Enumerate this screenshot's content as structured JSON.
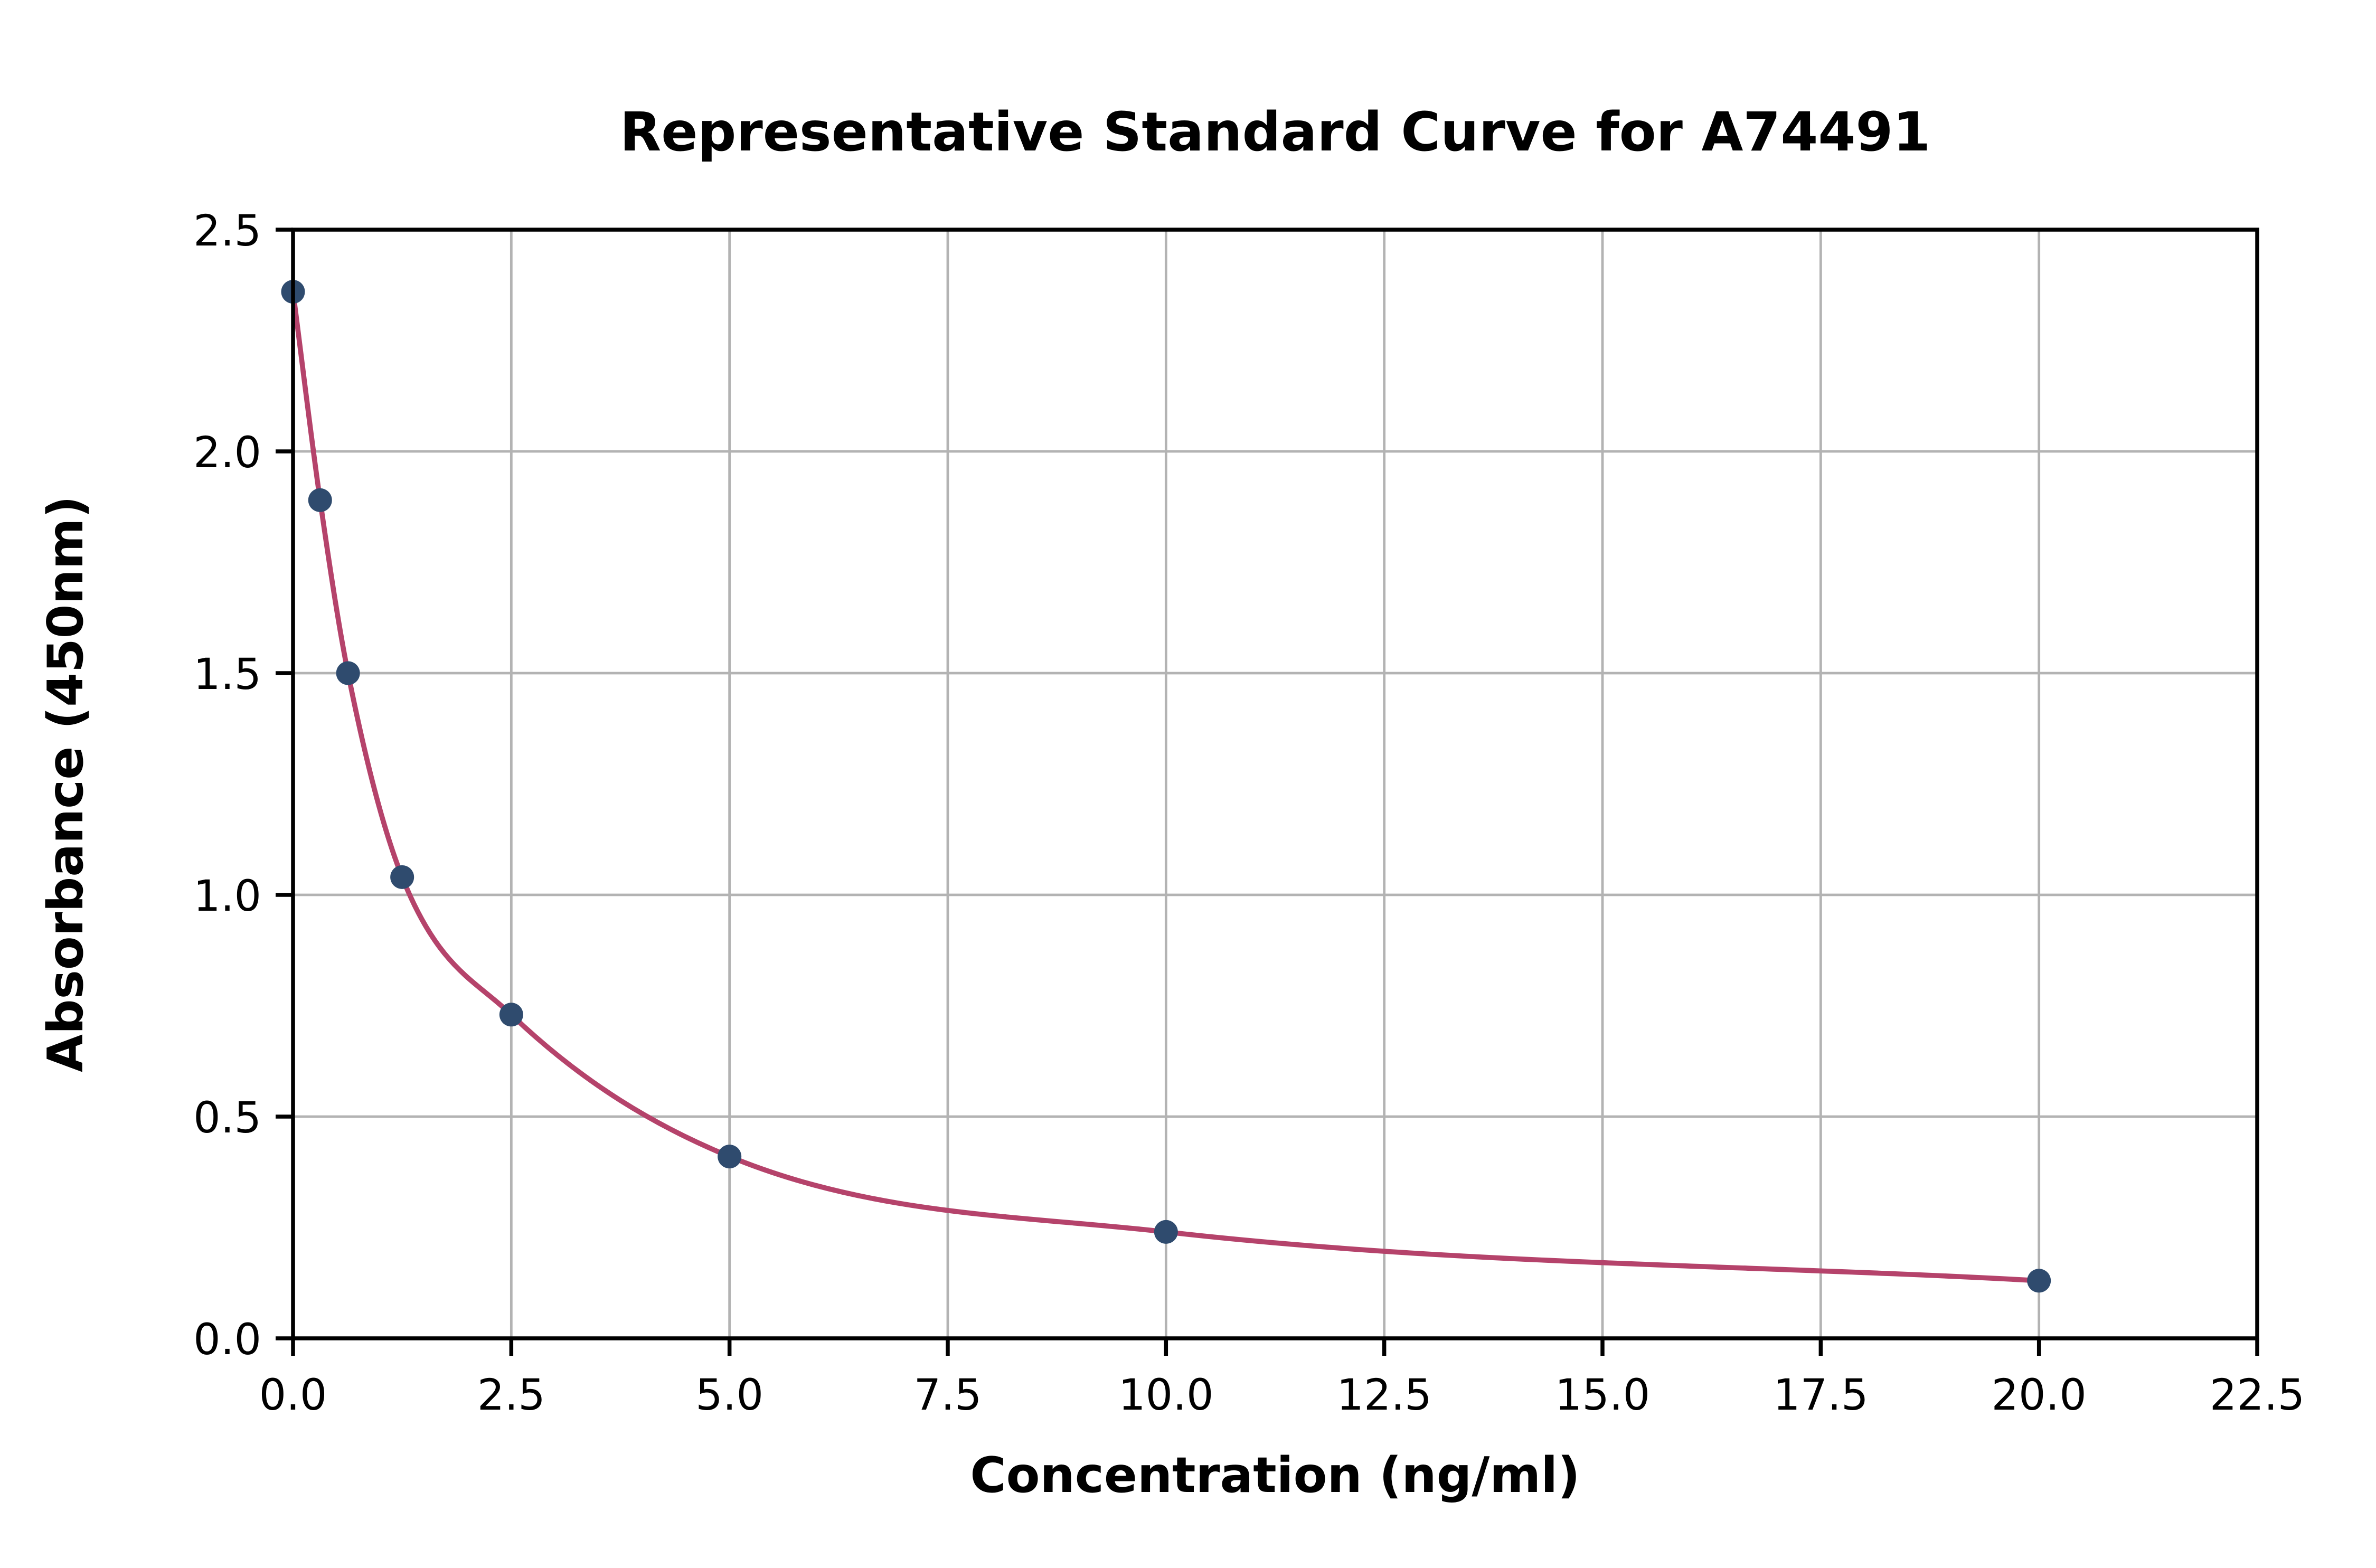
{
  "chart_data": {
    "type": "scatter",
    "title": "Representative Standard Curve for A74491",
    "xlabel": "Concentration (ng/ml)",
    "ylabel": "Absorbance (450nm)",
    "xlim": [
      0,
      22.5
    ],
    "ylim": [
      0,
      2.5
    ],
    "x_ticks": [
      0,
      2.5,
      5,
      7.5,
      10,
      12.5,
      15,
      17.5,
      20,
      22.5
    ],
    "y_ticks": [
      0,
      0.5,
      1,
      1.5,
      2,
      2.5
    ],
    "tick_decimals": 1,
    "grid": true,
    "legend_position": "none",
    "series": [
      {
        "name": "standard-curve",
        "points": [
          [
            0.0,
            2.36
          ],
          [
            0.31,
            1.89
          ],
          [
            0.63,
            1.5
          ],
          [
            1.25,
            1.04
          ],
          [
            2.5,
            0.73
          ],
          [
            5.0,
            0.41
          ],
          [
            10.0,
            0.24
          ],
          [
            20.0,
            0.13
          ]
        ]
      }
    ],
    "colors": {
      "marker": "#2f4b6e",
      "curve": "#b5436b",
      "grid": "#b3b3b3",
      "axis": "#000000",
      "text": "#000000",
      "background": "#ffffff"
    }
  }
}
